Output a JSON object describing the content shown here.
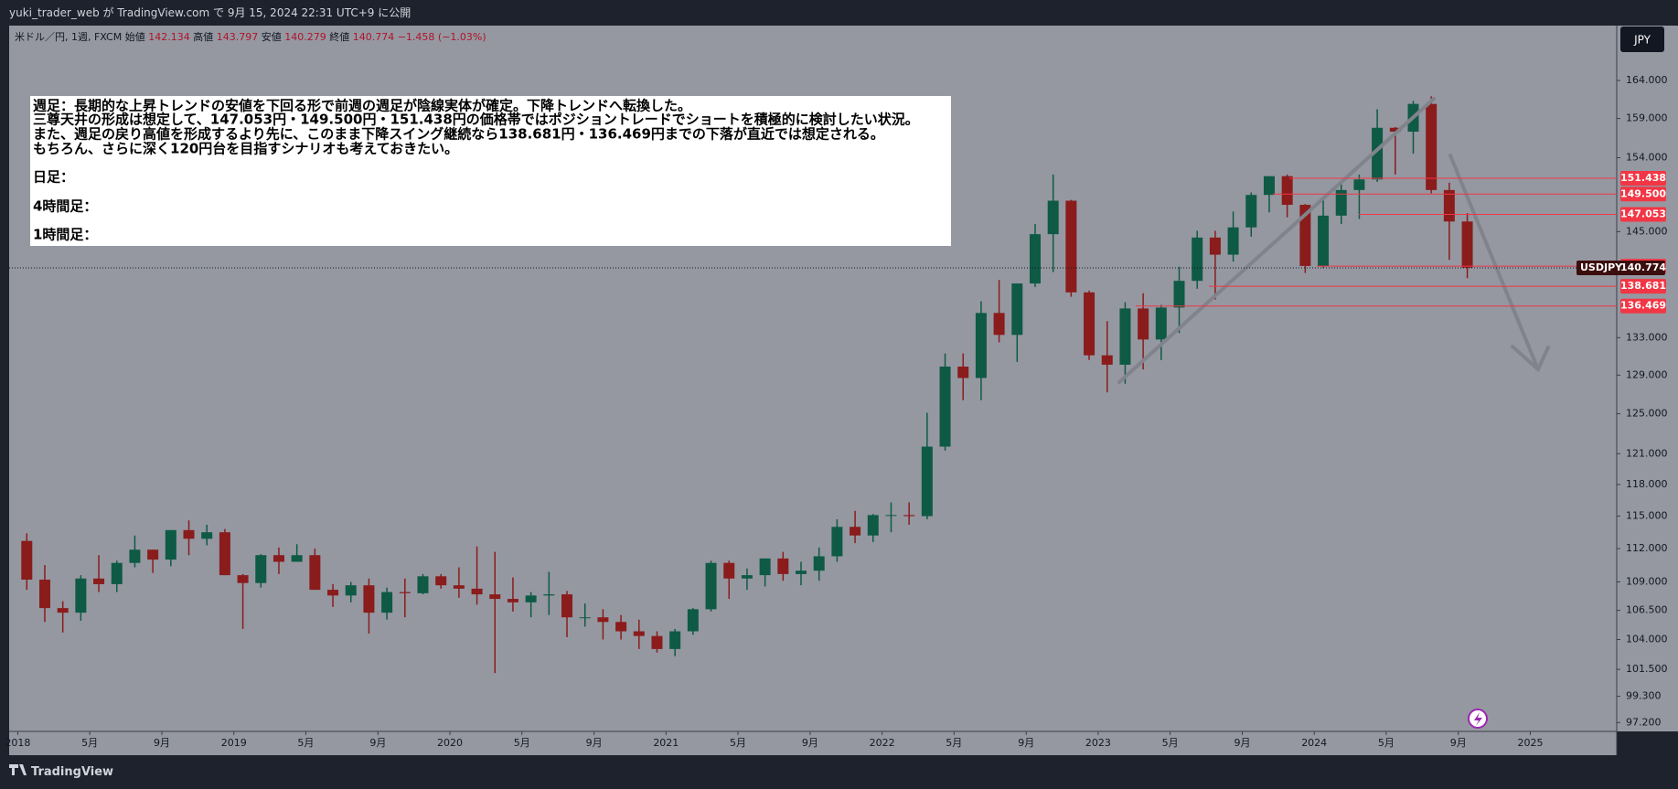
{
  "header": {
    "text": "yuki_trader_web が TradingView.com で 9月 15, 2024 22:31 UTC+9 に公開"
  },
  "legend": {
    "symbol": "米ドル／円, 1週, FXCM",
    "items": [
      {
        "label": "始値",
        "value": "142.134"
      },
      {
        "label": "高値",
        "value": "143.797"
      },
      {
        "label": "安値",
        "value": "140.279"
      },
      {
        "label": "終値",
        "value": "140.774"
      }
    ],
    "change": "−1.458 (−1.03%)"
  },
  "note": {
    "lines": [
      "週足：長期的な上昇トレンドの安値を下回る形で前週の週足が陰線実体が確定。下降トレンドへ転換した。",
      "三尊天井の形成は想定して、147.053円・149.500円・151.438円の価格帯ではポジショントレードでショートを積極的に検討したい状況。",
      "また、週足の戻り高値を形成するより先に、このまま下降スイング継続なら138.681円・136.469円までの下落が直近では想定される。",
      "もちろん、さらに深く120円台を目指すシナリオも考えておきたい。"
    ],
    "daily": "日足：",
    "h4": "4時間足：",
    "h1": "1時間足："
  },
  "currency_button": "JPY",
  "footer": {
    "brand": "TradingView"
  },
  "chart_data": {
    "type": "candlestick",
    "log_scale": true,
    "up_color": "#0e5a45",
    "down_color": "#8a1c1c",
    "x": [
      "2018-01",
      "2018-02",
      "2018-03",
      "2018-04",
      "2018-05",
      "2018-06",
      "2018-07",
      "2018-08",
      "2018-09",
      "2018-10",
      "2018-11",
      "2018-12",
      "2019-01",
      "2019-02",
      "2019-03",
      "2019-04",
      "2019-05",
      "2019-06",
      "2019-07",
      "2019-08",
      "2019-09",
      "2019-10",
      "2019-11",
      "2019-12",
      "2020-01",
      "2020-02",
      "2020-03",
      "2020-04",
      "2020-05",
      "2020-06",
      "2020-07",
      "2020-08",
      "2020-09",
      "2020-10",
      "2020-11",
      "2020-12",
      "2021-01",
      "2021-02",
      "2021-03",
      "2021-04",
      "2021-05",
      "2021-06",
      "2021-07",
      "2021-08",
      "2021-09",
      "2021-10",
      "2021-11",
      "2021-12",
      "2022-01",
      "2022-02",
      "2022-03",
      "2022-04",
      "2022-05",
      "2022-06",
      "2022-07",
      "2022-08",
      "2022-09",
      "2022-10",
      "2022-11",
      "2022-12",
      "2023-01",
      "2023-02",
      "2023-03",
      "2023-04",
      "2023-05",
      "2023-06",
      "2023-07",
      "2023-08",
      "2023-09",
      "2023-10",
      "2023-11",
      "2023-12",
      "2024-01",
      "2024-02",
      "2024-03",
      "2024-04",
      "2024-05",
      "2024-06",
      "2024-07",
      "2024-08",
      "2024-09"
    ],
    "open": [
      112.7,
      109.2,
      106.7,
      106.3,
      109.3,
      108.8,
      110.7,
      111.9,
      111.0,
      113.7,
      112.9,
      113.5,
      109.6,
      108.9,
      111.4,
      110.8,
      111.4,
      108.3,
      107.8,
      108.7,
      106.3,
      108.1,
      108.0,
      109.5,
      108.7,
      108.4,
      107.9,
      107.5,
      107.2,
      107.8,
      107.9,
      105.9,
      105.9,
      105.5,
      104.7,
      104.3,
      103.2,
      104.7,
      106.6,
      110.7,
      109.3,
      109.6,
      111.1,
      109.7,
      110.0,
      111.3,
      114.0,
      113.2,
      115.1,
      115.1,
      115.0,
      121.7,
      129.9,
      128.7,
      135.7,
      133.3,
      139.0,
      144.7,
      148.7,
      138.0,
      131.1,
      130.1,
      136.2,
      132.8,
      136.3,
      139.3,
      144.3,
      142.3,
      145.5,
      149.4,
      151.7,
      148.2,
      141.0,
      146.9,
      150.0,
      151.3,
      157.8,
      157.3,
      160.9,
      150.0,
      146.2
    ],
    "high": [
      113.4,
      110.5,
      107.3,
      109.6,
      111.4,
      110.9,
      113.2,
      111.9,
      113.7,
      114.6,
      114.2,
      113.8,
      109.7,
      111.5,
      112.1,
      112.4,
      112.0,
      108.8,
      109.0,
      109.3,
      108.5,
      109.3,
      109.7,
      109.7,
      110.3,
      112.2,
      111.7,
      109.4,
      108.1,
      109.9,
      108.2,
      107.1,
      106.6,
      106.1,
      105.7,
      104.7,
      104.9,
      106.7,
      110.9,
      110.9,
      110.2,
      111.1,
      111.7,
      110.8,
      112.1,
      114.7,
      115.5,
      115.2,
      116.3,
      116.3,
      125.1,
      131.3,
      131.3,
      137.0,
      139.4,
      139.0,
      145.9,
      151.9,
      148.8,
      138.2,
      134.8,
      136.9,
      137.9,
      136.6,
      140.9,
      145.1,
      145.1,
      147.4,
      149.7,
      151.7,
      151.9,
      148.3,
      148.8,
      150.9,
      151.9,
      160.2,
      157.9,
      161.3,
      161.9,
      150.9,
      147.2
    ],
    "low": [
      108.3,
      105.5,
      104.6,
      105.6,
      108.1,
      108.1,
      110.3,
      109.8,
      110.4,
      111.4,
      112.3,
      109.6,
      104.9,
      108.5,
      109.7,
      110.8,
      108.3,
      106.8,
      107.2,
      104.5,
      105.7,
      105.9,
      107.9,
      108.4,
      107.6,
      107.0,
      101.2,
      106.4,
      105.9,
      106.1,
      104.2,
      105.1,
      104.0,
      104.0,
      103.2,
      102.9,
      102.6,
      104.4,
      106.4,
      107.5,
      108.3,
      108.6,
      109.1,
      108.7,
      109.1,
      110.8,
      112.5,
      112.6,
      113.5,
      114.2,
      114.7,
      121.3,
      126.4,
      126.4,
      132.5,
      130.4,
      138.6,
      140.3,
      137.5,
      130.6,
      127.2,
      128.1,
      129.6,
      130.6,
      133.5,
      138.4,
      137.2,
      141.5,
      144.4,
      147.3,
      146.7,
      140.2,
      140.8,
      145.9,
      146.5,
      151.0,
      151.9,
      154.5,
      149.6,
      141.7,
      139.6
    ],
    "close": [
      109.2,
      106.7,
      106.3,
      109.3,
      108.8,
      110.7,
      111.9,
      111.0,
      113.7,
      112.9,
      113.5,
      109.6,
      108.9,
      111.4,
      110.8,
      111.4,
      108.3,
      107.8,
      108.7,
      106.3,
      108.1,
      108.0,
      109.5,
      108.7,
      108.4,
      107.9,
      107.5,
      107.2,
      107.8,
      107.9,
      105.9,
      105.9,
      105.5,
      104.7,
      104.3,
      103.2,
      104.7,
      106.6,
      110.7,
      109.3,
      109.6,
      111.1,
      109.7,
      110.0,
      111.3,
      114.0,
      113.2,
      115.1,
      115.1,
      115.0,
      121.7,
      129.9,
      128.7,
      135.7,
      133.3,
      139.0,
      144.7,
      148.7,
      138.0,
      131.1,
      130.1,
      136.2,
      132.8,
      136.3,
      139.3,
      144.3,
      142.3,
      145.5,
      149.4,
      151.7,
      148.2,
      141.0,
      146.9,
      150.0,
      151.3,
      157.8,
      157.3,
      160.9,
      150.0,
      146.2,
      140.8
    ],
    "xlim": [
      2017.96,
      2025.4
    ],
    "xticks": [
      2018,
      {
        "value": 2018.333,
        "label": "5月"
      },
      {
        "value": 2018.667,
        "label": "9月"
      },
      2019,
      {
        "value": 2019.333,
        "label": "5月"
      },
      {
        "value": 2019.667,
        "label": "9月"
      },
      2020,
      {
        "value": 2020.333,
        "label": "5月"
      },
      {
        "value": 2020.667,
        "label": "9月"
      },
      2021,
      {
        "value": 2021.333,
        "label": "5月"
      },
      {
        "value": 2021.667,
        "label": "9月"
      },
      2022,
      {
        "value": 2022.333,
        "label": "5月"
      },
      {
        "value": 2022.667,
        "label": "9月"
      },
      2023,
      {
        "value": 2023.333,
        "label": "5月"
      },
      {
        "value": 2023.667,
        "label": "9月"
      },
      2024,
      {
        "value": 2024.333,
        "label": "5月"
      },
      {
        "value": 2024.667,
        "label": "9月"
      },
      2025
    ],
    "ylim": [
      96.5,
      171.5
    ],
    "yticks": [
      {
        "value": 164,
        "label": "164.000"
      },
      {
        "value": 159,
        "label": "159.000"
      },
      {
        "value": 154,
        "label": "154.000"
      },
      {
        "value": 145,
        "label": "145.000"
      },
      {
        "value": 133,
        "label": "133.000"
      },
      {
        "value": 129,
        "label": "129.000"
      },
      {
        "value": 125,
        "label": "125.000"
      },
      {
        "value": 121,
        "label": "121.000"
      },
      {
        "value": 118,
        "label": "118.000"
      },
      {
        "value": 115,
        "label": "115.000"
      },
      {
        "value": 112,
        "label": "112.000"
      },
      {
        "value": 109,
        "label": "109.000"
      },
      {
        "value": 106.5,
        "label": "106.500"
      },
      {
        "value": 104,
        "label": "104.000"
      },
      {
        "value": 101.5,
        "label": "101.500"
      },
      {
        "value": 99.3,
        "label": "99.300"
      },
      {
        "value": 97.2,
        "label": "97.200"
      }
    ],
    "levels": [
      151.438,
      {
        "value": 149.5,
        "label": "149.500"
      },
      147.053,
      140.982,
      138.681,
      136.469
    ],
    "level_color": "#f23645",
    "last_price": {
      "symbol": "USDJPY",
      "value": 140.774
    }
  }
}
